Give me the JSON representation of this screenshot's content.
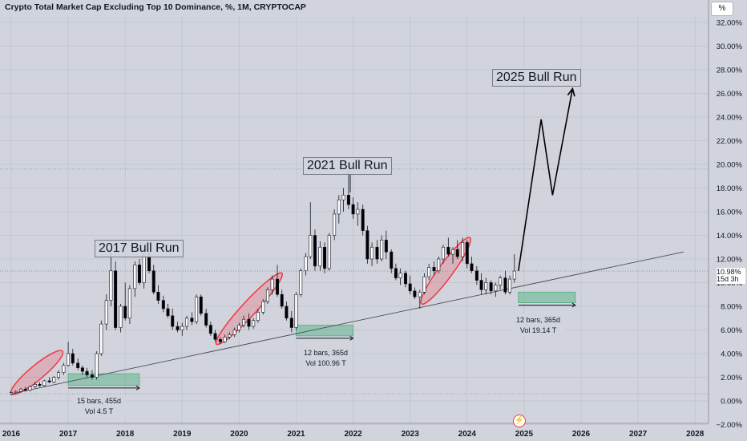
{
  "header": {
    "title": "Crypto Total Market Cap Excluding Top 10 Dominance, %, 1M, CRYPTOCAP",
    "unit_button": "%"
  },
  "price_tag": {
    "value": "10.98%",
    "countdown": "15d 3h"
  },
  "annotations": {
    "bull_runs": [
      "2017 Bull Run",
      "2021 Bull Run",
      "2025 Bull Run"
    ],
    "ranges": [
      {
        "line1": "15 bars, 455d",
        "line2": "Vol 4.5 T"
      },
      {
        "line1": "12 bars, 365d",
        "line2": "Vol 100.96 T"
      },
      {
        "line1": "12 bars, 365d",
        "line2": "Vol 19.14 T"
      }
    ]
  },
  "icons": {
    "alert": "lightning-bolt-icon",
    "bolt_glyph": "⚡"
  },
  "colors": {
    "up": "#ffffff",
    "down": "#000000",
    "ellipse": "#f23645",
    "range": "#4caf7d",
    "bg": "#d1d4dc"
  },
  "chart_data": {
    "type": "candlestick",
    "title": "Crypto Total Market Cap Excluding Top 10 Dominance, %, 1M, CRYPTOCAP",
    "xlabel": "",
    "ylabel": "",
    "x_ticks": [
      "2016",
      "2017",
      "2018",
      "2019",
      "2020",
      "2021",
      "2022",
      "2023",
      "2024",
      "2025",
      "2026",
      "2027",
      "2028"
    ],
    "y_ticks": [
      "−2.00%",
      "0.00%",
      "2.00%",
      "4.00%",
      "6.00%",
      "8.00%",
      "10.00%",
      "12.00%",
      "14.00%",
      "16.00%",
      "18.00%",
      "20.00%",
      "22.00%",
      "24.00%",
      "26.00%",
      "28.00%",
      "30.00%",
      "32.00%"
    ],
    "ylim": [
      -2,
      33
    ],
    "xlim": [
      2016.0,
      2028.0
    ],
    "last_value": 10.98,
    "series": [
      {
        "name": "",
        "ohlc": [
          [
            2016.0,
            0.6,
            0.8,
            0.5,
            0.7
          ],
          [
            2016.08,
            0.7,
            0.9,
            0.6,
            0.8
          ],
          [
            2016.17,
            0.8,
            1.1,
            0.7,
            1.0
          ],
          [
            2016.25,
            1.0,
            1.2,
            0.8,
            0.9
          ],
          [
            2016.33,
            0.9,
            1.3,
            0.8,
            1.2
          ],
          [
            2016.42,
            1.2,
            1.6,
            1.1,
            1.4
          ],
          [
            2016.5,
            1.4,
            1.6,
            1.2,
            1.3
          ],
          [
            2016.58,
            1.3,
            1.8,
            1.2,
            1.7
          ],
          [
            2016.67,
            1.7,
            2.0,
            1.5,
            1.6
          ],
          [
            2016.75,
            1.6,
            2.1,
            1.5,
            2.0
          ],
          [
            2016.83,
            2.0,
            2.6,
            1.8,
            2.4
          ],
          [
            2016.92,
            2.4,
            3.2,
            2.2,
            3.0
          ],
          [
            2017.0,
            3.0,
            5.0,
            2.9,
            4.0
          ],
          [
            2017.08,
            4.0,
            4.4,
            3.0,
            3.2
          ],
          [
            2017.17,
            3.2,
            3.6,
            2.6,
            2.8
          ],
          [
            2017.25,
            2.8,
            3.0,
            2.2,
            2.5
          ],
          [
            2017.33,
            2.5,
            2.8,
            2.0,
            2.2
          ],
          [
            2017.42,
            2.2,
            2.6,
            1.8,
            2.0
          ],
          [
            2017.5,
            2.0,
            4.2,
            1.8,
            4.0
          ],
          [
            2017.58,
            4.0,
            6.8,
            3.8,
            6.5
          ],
          [
            2017.67,
            6.5,
            9.0,
            6.0,
            8.5
          ],
          [
            2017.75,
            8.5,
            12.5,
            8.0,
            11.0
          ],
          [
            2017.83,
            11.0,
            11.8,
            6.0,
            6.2
          ],
          [
            2017.92,
            6.2,
            8.2,
            5.8,
            8.0
          ],
          [
            2018.0,
            8.0,
            10.0,
            6.8,
            7.0
          ],
          [
            2018.08,
            7.0,
            9.8,
            6.5,
            9.5
          ],
          [
            2018.17,
            9.5,
            11.8,
            8.8,
            11.5
          ],
          [
            2018.25,
            11.5,
            12.0,
            9.8,
            10.0
          ],
          [
            2018.33,
            10.0,
            12.5,
            9.5,
            12.2
          ],
          [
            2018.42,
            12.2,
            12.6,
            10.8,
            11.0
          ],
          [
            2018.5,
            11.0,
            11.5,
            9.0,
            9.2
          ],
          [
            2018.58,
            9.2,
            9.8,
            8.2,
            8.5
          ],
          [
            2018.67,
            8.5,
            8.9,
            7.5,
            7.8
          ],
          [
            2018.75,
            7.8,
            8.2,
            7.0,
            7.2
          ],
          [
            2018.83,
            7.2,
            7.8,
            6.0,
            6.3
          ],
          [
            2018.92,
            6.3,
            6.7,
            5.8,
            6.0
          ],
          [
            2019.0,
            6.0,
            6.6,
            5.5,
            6.3
          ],
          [
            2019.08,
            6.3,
            7.2,
            6.0,
            7.0
          ],
          [
            2019.17,
            7.0,
            7.5,
            6.4,
            6.7
          ],
          [
            2019.25,
            6.7,
            9.0,
            6.5,
            8.8
          ],
          [
            2019.33,
            8.8,
            9.0,
            7.2,
            7.4
          ],
          [
            2019.42,
            7.4,
            7.8,
            6.2,
            6.4
          ],
          [
            2019.5,
            6.4,
            6.7,
            5.5,
            5.7
          ],
          [
            2019.58,
            5.7,
            6.0,
            5.0,
            5.2
          ],
          [
            2019.67,
            5.2,
            5.4,
            4.8,
            5.0
          ],
          [
            2019.75,
            5.0,
            5.6,
            4.9,
            5.4
          ],
          [
            2019.83,
            5.4,
            5.8,
            5.2,
            5.6
          ],
          [
            2019.92,
            5.6,
            6.2,
            5.4,
            6.0
          ],
          [
            2020.0,
            6.0,
            6.6,
            5.8,
            6.4
          ],
          [
            2020.08,
            6.4,
            7.2,
            6.2,
            6.9
          ],
          [
            2020.17,
            6.9,
            7.4,
            6.0,
            6.3
          ],
          [
            2020.25,
            6.3,
            7.0,
            6.1,
            6.8
          ],
          [
            2020.33,
            6.8,
            7.8,
            6.6,
            7.5
          ],
          [
            2020.42,
            7.5,
            8.6,
            7.3,
            8.4
          ],
          [
            2020.5,
            8.4,
            9.6,
            8.2,
            9.4
          ],
          [
            2020.58,
            9.4,
            10.6,
            9.0,
            10.3
          ],
          [
            2020.67,
            10.3,
            11.5,
            8.8,
            9.0
          ],
          [
            2020.75,
            9.0,
            9.4,
            7.8,
            8.0
          ],
          [
            2020.83,
            8.0,
            8.4,
            6.8,
            7.0
          ],
          [
            2020.92,
            7.0,
            7.6,
            5.8,
            6.2
          ],
          [
            2021.0,
            6.2,
            9.2,
            6.0,
            9.0
          ],
          [
            2021.08,
            9.0,
            11.2,
            8.8,
            11.0
          ],
          [
            2021.17,
            11.0,
            12.5,
            10.6,
            12.2
          ],
          [
            2021.25,
            12.2,
            16.8,
            12.0,
            14.0
          ],
          [
            2021.33,
            14.0,
            14.5,
            11.0,
            11.4
          ],
          [
            2021.42,
            11.4,
            13.5,
            11.0,
            13.0
          ],
          [
            2021.5,
            13.0,
            13.4,
            10.8,
            11.2
          ],
          [
            2021.58,
            11.2,
            14.2,
            11.0,
            14.0
          ],
          [
            2021.67,
            14.0,
            16.2,
            13.6,
            15.8
          ],
          [
            2021.75,
            15.8,
            17.4,
            15.0,
            17.0
          ],
          [
            2021.83,
            17.0,
            18.0,
            16.0,
            17.4
          ],
          [
            2021.92,
            17.4,
            19.5,
            16.2,
            16.6
          ],
          [
            2022.0,
            16.6,
            17.2,
            15.4,
            15.8
          ],
          [
            2022.08,
            15.8,
            16.8,
            14.8,
            16.2
          ],
          [
            2022.17,
            16.2,
            16.6,
            14.0,
            14.4
          ],
          [
            2022.25,
            14.4,
            14.8,
            11.6,
            12.0
          ],
          [
            2022.33,
            12.0,
            13.4,
            11.4,
            13.0
          ],
          [
            2022.42,
            13.0,
            13.6,
            11.6,
            12.0
          ],
          [
            2022.5,
            12.0,
            14.0,
            11.8,
            13.6
          ],
          [
            2022.58,
            13.6,
            14.4,
            12.0,
            12.6
          ],
          [
            2022.67,
            12.6,
            12.8,
            10.8,
            11.2
          ],
          [
            2022.75,
            11.2,
            11.6,
            10.2,
            10.4
          ],
          [
            2022.83,
            10.4,
            11.2,
            9.8,
            10.8
          ],
          [
            2022.92,
            10.8,
            11.0,
            9.6,
            9.9
          ],
          [
            2023.0,
            9.9,
            10.6,
            9.0,
            9.3
          ],
          [
            2023.08,
            9.3,
            9.6,
            8.6,
            8.8
          ],
          [
            2023.17,
            8.8,
            9.4,
            7.8,
            9.2
          ],
          [
            2023.25,
            9.2,
            10.8,
            9.0,
            10.5
          ],
          [
            2023.33,
            10.5,
            11.6,
            10.2,
            11.3
          ],
          [
            2023.42,
            11.3,
            11.8,
            10.6,
            11.0
          ],
          [
            2023.5,
            11.0,
            12.2,
            10.8,
            12.0
          ],
          [
            2023.58,
            12.0,
            13.2,
            11.6,
            13.0
          ],
          [
            2023.67,
            13.0,
            13.8,
            12.2,
            12.4
          ],
          [
            2023.75,
            12.4,
            13.0,
            11.6,
            12.8
          ],
          [
            2023.83,
            12.8,
            13.6,
            12.0,
            12.2
          ],
          [
            2023.92,
            12.2,
            13.8,
            11.8,
            13.4
          ],
          [
            2024.0,
            13.4,
            13.6,
            11.2,
            11.6
          ],
          [
            2024.08,
            11.6,
            12.2,
            10.8,
            11.0
          ],
          [
            2024.17,
            11.0,
            11.4,
            9.8,
            10.2
          ],
          [
            2024.25,
            10.2,
            10.8,
            9.0,
            9.4
          ],
          [
            2024.33,
            9.4,
            10.4,
            9.0,
            10.0
          ],
          [
            2024.42,
            10.0,
            10.2,
            9.0,
            9.3
          ],
          [
            2024.5,
            9.3,
            10.0,
            8.8,
            9.8
          ],
          [
            2024.58,
            9.8,
            10.6,
            9.4,
            10.4
          ],
          [
            2024.67,
            10.4,
            11.0,
            9.0,
            9.2
          ],
          [
            2024.75,
            9.2,
            10.6,
            9.0,
            10.3
          ],
          [
            2024.83,
            10.3,
            12.4,
            10.0,
            10.98
          ]
        ]
      }
    ],
    "trendline": {
      "x": [
        2016.0,
        2027.8
      ],
      "y": [
        0.6,
        12.6
      ]
    },
    "horizontal_lines": [
      19.6,
      10.98
    ],
    "projection": {
      "x": [
        2024.9,
        2025.3,
        2025.5,
        2025.85
      ],
      "y": [
        11.0,
        23.8,
        17.4,
        26.4
      ]
    },
    "highlight_ellipses": [
      {
        "x_range": [
          2016.0,
          2016.9
        ],
        "y_range": [
          0.6,
          4.2
        ]
      },
      {
        "x_range": [
          2019.6,
          2020.75
        ],
        "y_range": [
          4.8,
          10.8
        ]
      },
      {
        "x_range": [
          2023.2,
          2024.05
        ],
        "y_range": [
          8.2,
          13.8
        ]
      }
    ],
    "ranges_data": [
      {
        "x_range": [
          2017.0,
          2018.25
        ],
        "y_top": 2.3,
        "y_bottom": 1.3
      },
      {
        "x_range": [
          2021.0,
          2022.0
        ],
        "y_top": 6.4,
        "y_bottom": 5.5
      },
      {
        "x_range": [
          2024.9,
          2025.9
        ],
        "y_top": 9.2,
        "y_bottom": 8.3
      }
    ]
  }
}
